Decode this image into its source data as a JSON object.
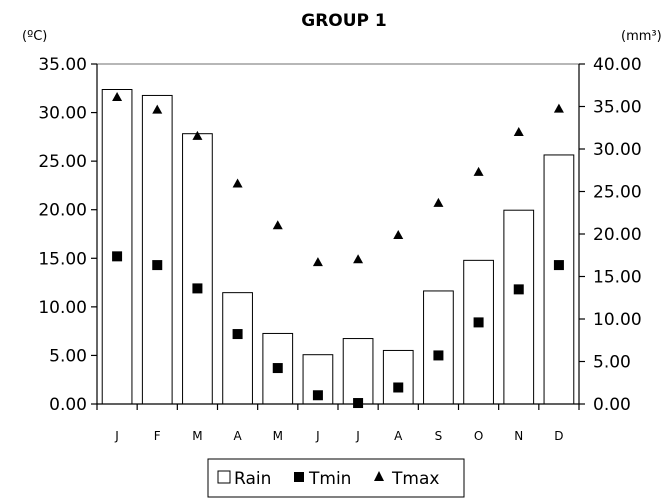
{
  "chart_data": {
    "type": "bar",
    "title": "GROUP 1",
    "left_unit": "(ºC)",
    "right_unit": "(mm³)",
    "categories": [
      "J",
      "F",
      "M",
      "A",
      "M",
      "J",
      "J",
      "A",
      "S",
      "O",
      "N",
      "D"
    ],
    "left_axis": {
      "ylim": [
        0,
        35
      ],
      "ticks": [
        "0.00",
        "5.00",
        "10.00",
        "15.00",
        "20.00",
        "25.00",
        "30.00",
        "35.00"
      ]
    },
    "right_axis": {
      "ylim": [
        0,
        40
      ],
      "ticks": [
        "0.00",
        "5.00",
        "10.00",
        "15.00",
        "20.00",
        "25.00",
        "30.00",
        "35.00",
        "40.00"
      ]
    },
    "series": [
      {
        "name": "Rain",
        "type": "bar",
        "axis": "right",
        "marker": "open-square",
        "values": [
          37.0,
          36.3,
          31.8,
          13.1,
          8.3,
          5.8,
          7.7,
          6.3,
          13.3,
          16.9,
          22.8,
          29.3
        ]
      },
      {
        "name": "Tmin",
        "type": "scatter",
        "axis": "left",
        "marker": "filled-square",
        "values": [
          15.2,
          14.3,
          11.9,
          7.2,
          3.7,
          0.9,
          0.1,
          1.7,
          5.0,
          8.4,
          11.8,
          14.3
        ]
      },
      {
        "name": "Tmax",
        "type": "scatter",
        "axis": "left",
        "marker": "triangle",
        "values": [
          31.6,
          30.3,
          27.6,
          22.7,
          18.4,
          14.6,
          14.9,
          17.4,
          20.7,
          23.9,
          28.0,
          30.4
        ]
      }
    ],
    "legend": {
      "position": "bottom",
      "entries": [
        "Rain",
        "Tmin",
        "Tmax"
      ]
    },
    "grid": false
  }
}
